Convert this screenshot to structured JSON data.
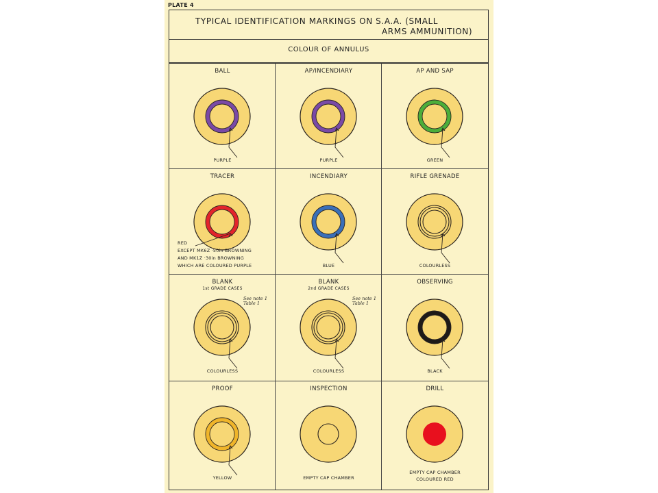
{
  "plate_label": "PLATE 4",
  "title_line1": "TYPICAL IDENTIFICATION MARKINGS ON S.A.A. (SMALL",
  "title_line2": "ARMS AMMUNITION)",
  "subtitle": "COLOUR OF ANNULUS",
  "cells": [
    {
      "name": "BALL",
      "label": "PURPLE",
      "annulus_color": "#7a4aa6",
      "style": "ring"
    },
    {
      "name": "AP/INCENDIARY",
      "label": "PURPLE",
      "annulus_color": "#7a4aa6",
      "style": "ring"
    },
    {
      "name": "AP AND SAP",
      "label": "GREEN",
      "annulus_color": "#4cae3a",
      "style": "ring"
    },
    {
      "name": "TRACER",
      "label_lines": [
        "RED",
        "EXCEPT MK6Z ·50in BROWNING",
        "AND MK1Z ·30in BROWNING",
        "WHICH ARE COLOURED PURPLE"
      ],
      "annulus_color": "#e3242b",
      "style": "ring"
    },
    {
      "name": "INCENDIARY",
      "label": "BLUE",
      "annulus_color": "#3a6fb8",
      "style": "ring"
    },
    {
      "name": "RIFLE GRENADE",
      "label": "COLOURLESS",
      "annulus_color": "none",
      "style": "double"
    },
    {
      "name": "BLANK",
      "sub": "1st GRADE CASES",
      "note": "See note 1\nTable 1",
      "label": "COLOURLESS",
      "annulus_color": "none",
      "style": "double"
    },
    {
      "name": "BLANK",
      "sub": "2nd GRADE CASES",
      "note": "See note 1\nTable 1",
      "label": "COLOURLESS",
      "annulus_color": "none",
      "style": "double"
    },
    {
      "name": "OBSERVING",
      "label": "BLACK",
      "annulus_color": "#1e1a18",
      "style": "ring"
    },
    {
      "name": "PROOF",
      "label": "YELLOW",
      "annulus_color": "#f0b52a",
      "style": "ring"
    },
    {
      "name": "INSPECTION",
      "label": "EMPTY CAP CHAMBER",
      "annulus_color": "none",
      "style": "empty"
    },
    {
      "name": "DRILL",
      "label_lines": [
        "EMPTY CAP CHAMBER",
        "COLOURED RED"
      ],
      "annulus_color": "#e8101e",
      "style": "filled"
    }
  ]
}
